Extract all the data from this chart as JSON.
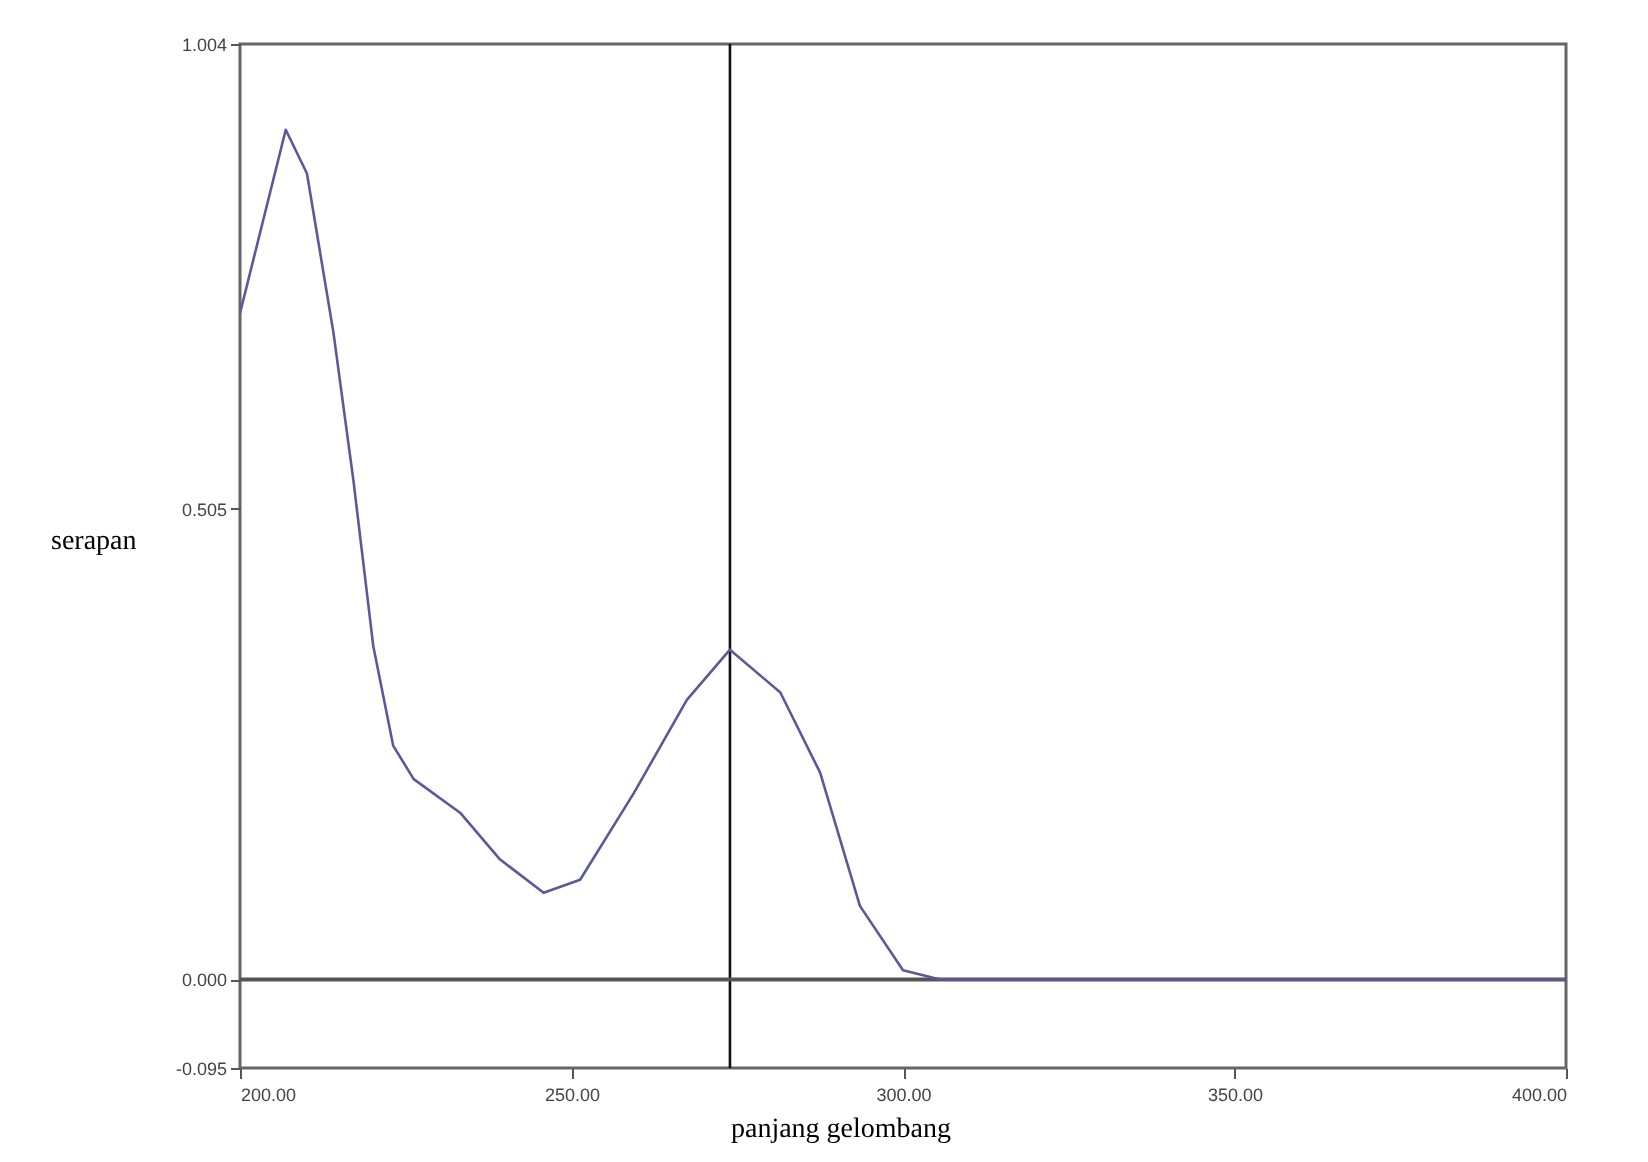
{
  "chart_data": {
    "type": "line",
    "xlabel": "panjang gelombang",
    "ylabel": "serapan",
    "x": [
      200,
      206.9,
      210.1,
      214.1,
      217.1,
      220.1,
      223.1,
      226.2,
      233.2,
      239.2,
      245.8,
      251.3,
      259.4,
      267.4,
      273.9,
      281.5,
      287.5,
      293.5,
      300,
      305.6,
      320,
      340,
      360,
      380,
      400
    ],
    "series": [
      {
        "color": "#5a5a9a",
        "values": [
          0.715,
          0.912,
          0.865,
          0.694,
          0.536,
          0.358,
          0.251,
          0.215,
          0.179,
          0.129,
          0.093,
          0.107,
          0.2,
          0.3,
          0.354,
          0.308,
          0.222,
          0.079,
          0.01,
          0,
          0,
          0,
          0,
          0,
          0
        ]
      }
    ],
    "xlim": [
      200,
      400
    ],
    "xticks": [
      {
        "value": 200,
        "label": "200.00"
      },
      {
        "value": 250,
        "label": "250.00"
      },
      {
        "value": 300,
        "label": "300.00"
      },
      {
        "value": 350,
        "label": "350.00"
      },
      {
        "value": 400,
        "label": "400.00"
      }
    ],
    "ylim": [
      -0.095,
      1.004
    ],
    "yticks": [
      -0.095,
      {
        "value": 0,
        "label": "0.000"
      },
      0.505,
      1.004
    ],
    "ref_lines": [
      {
        "axis": "y",
        "value": 0,
        "color": "#555555"
      },
      {
        "axis": "x",
        "value": 273.9,
        "color": "#111111"
      }
    ],
    "grid": false
  }
}
